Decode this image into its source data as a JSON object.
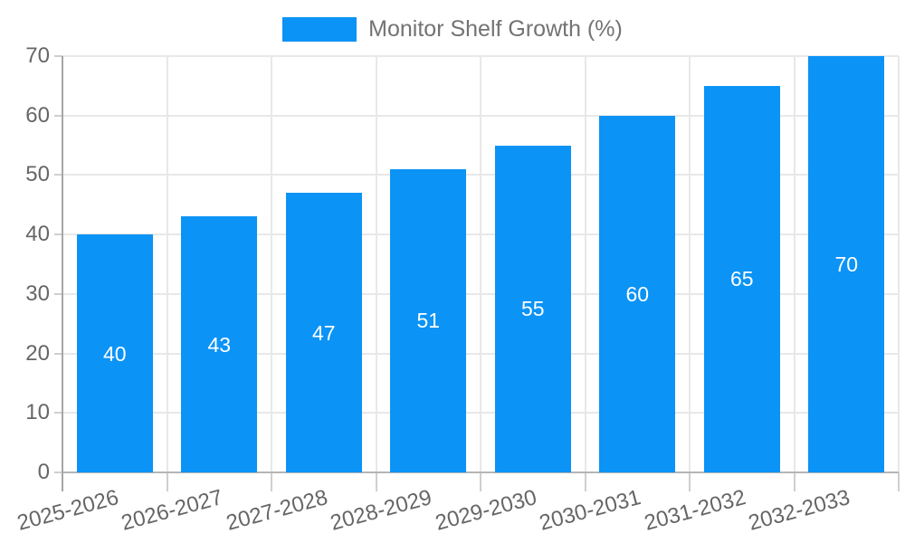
{
  "legend": {
    "label": "Monitor Shelf Growth (%)"
  },
  "chart_data": {
    "type": "bar",
    "title": "",
    "xlabel": "",
    "ylabel": "",
    "categories": [
      "2025-2026",
      "2026-2027",
      "2027-2028",
      "2028-2029",
      "2029-2030",
      "2030-2031",
      "2031-2032",
      "2032-2033"
    ],
    "series": [
      {
        "name": "Monitor Shelf Growth (%)",
        "values": [
          40,
          43,
          47,
          51,
          55,
          60,
          65,
          70
        ]
      }
    ],
    "value_labels": [
      "40",
      "43",
      "47",
      "51",
      "55",
      "60",
      "65",
      "70"
    ],
    "ylim": [
      0,
      70
    ],
    "yticks": [
      0,
      10,
      20,
      30,
      40,
      50,
      60,
      70
    ],
    "grid": true,
    "legend_position": "top-center",
    "colors": {
      "bar": "#0b93f6",
      "value_text": "#ffffff",
      "axis_text": "#666666",
      "legend_text": "#737373",
      "gridline": "#e8e8e8",
      "tick": "#cfcfcf",
      "axis_line": "#a6a6a6",
      "baseline": "#b5b5b5"
    }
  }
}
